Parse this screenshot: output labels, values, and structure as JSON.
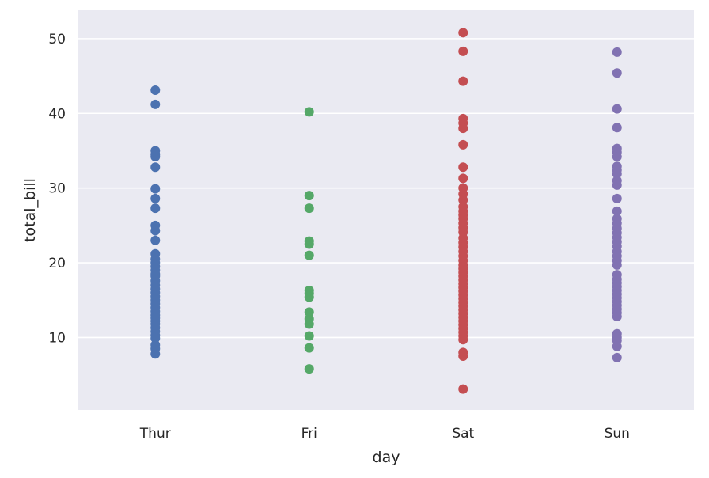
{
  "chart_data": {
    "type": "scatter",
    "xlabel": "day",
    "ylabel": "total_bill",
    "categories": [
      "Thur",
      "Fri",
      "Sat",
      "Sun"
    ],
    "ylim": [
      0.3,
      53.8
    ],
    "yticks": [
      "10",
      "20",
      "30",
      "40",
      "50"
    ],
    "grid": true,
    "background": "#eaeaf2",
    "series": [
      {
        "category": "Thur",
        "color": "#4c72b0",
        "values": [
          43.1,
          41.2,
          35.0,
          34.5,
          34.2,
          32.8,
          29.9,
          28.6,
          27.3,
          25.0,
          24.3,
          23.0,
          21.2,
          20.5,
          20.0,
          19.5,
          19.0,
          18.5,
          18.2,
          17.6,
          17.0,
          16.5,
          16.0,
          15.5,
          15.0,
          14.5,
          14.0,
          13.5,
          13.0,
          12.6,
          12.2,
          11.8,
          11.3,
          10.8,
          10.3,
          9.9,
          9.0,
          8.5,
          7.8
        ]
      },
      {
        "category": "Fri",
        "color": "#55a868",
        "values": [
          40.2,
          29.0,
          27.3,
          22.9,
          22.5,
          21.0,
          16.3,
          15.9,
          15.4,
          13.4,
          12.5,
          11.8,
          10.2,
          8.6,
          5.8
        ]
      },
      {
        "category": "Sat",
        "color": "#c44e52",
        "values": [
          50.8,
          48.3,
          44.3,
          39.3,
          38.7,
          38.0,
          35.8,
          32.8,
          31.3,
          30.0,
          29.2,
          28.4,
          27.5,
          26.9,
          26.4,
          25.9,
          25.3,
          24.7,
          24.1,
          23.3,
          22.7,
          22.1,
          21.5,
          20.9,
          20.3,
          19.7,
          19.2,
          18.7,
          18.2,
          17.7,
          17.2,
          16.7,
          16.2,
          15.7,
          15.2,
          14.7,
          14.2,
          13.7,
          13.2,
          12.7,
          12.2,
          11.7,
          11.2,
          10.7,
          10.2,
          9.7,
          8.0,
          7.5,
          3.1
        ]
      },
      {
        "category": "Sun",
        "color": "#8172b2",
        "values": [
          48.2,
          45.4,
          40.6,
          38.1,
          35.3,
          34.8,
          34.2,
          32.9,
          32.4,
          31.9,
          31.0,
          30.4,
          28.6,
          26.9,
          25.9,
          25.3,
          24.6,
          24.0,
          23.4,
          22.8,
          22.2,
          21.5,
          20.9,
          20.3,
          19.7,
          18.4,
          17.8,
          17.3,
          16.8,
          16.3,
          15.8,
          15.3,
          14.8,
          14.3,
          13.8,
          13.3,
          12.8,
          10.5,
          10.0,
          9.6,
          8.8,
          7.3
        ]
      }
    ]
  }
}
